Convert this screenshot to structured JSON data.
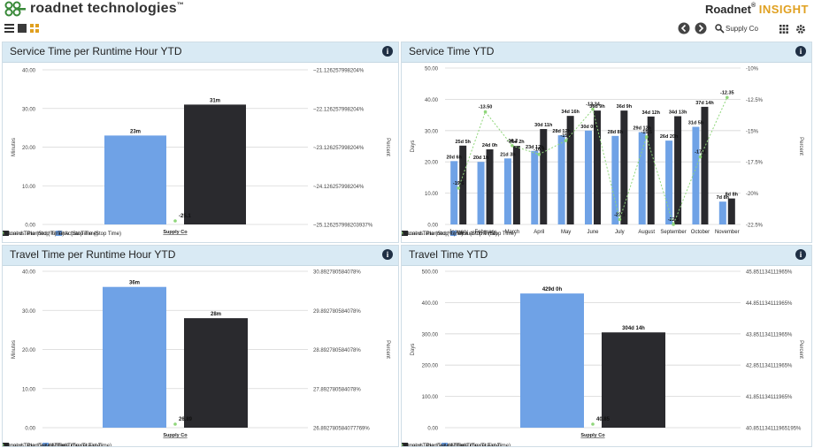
{
  "header": {
    "logo_text": "roadnet technologies",
    "logo_trademark": "™",
    "brand_main": "Roadnet",
    "brand_reg": "®",
    "brand_accent": "INSIGHT",
    "customer_label": "Supply Co"
  },
  "icons": {
    "menu": "menu-icon",
    "list_view": "list-view-icon",
    "grid_view": "grid-view-icon",
    "back": "back-icon",
    "forward": "forward-icon",
    "search": "search-icon",
    "apps": "apps-icon",
    "settings": "gear-icon"
  },
  "colors": {
    "actual": "#6fa2e6",
    "planned": "#2a2a2e",
    "variance": "#8fd67a",
    "panel_header": "#d9eaf4"
  },
  "panels": [
    {
      "title": "Service Time per Runtime Hour YTD",
      "y_left_label": "Minutes",
      "y_right_label": "Percent",
      "legend": [
        "Actual Time (Stop Time)",
        "Planned Time (Stop Time)",
        "Actual vs. Planned (%) Time (Stop Time)"
      ]
    },
    {
      "title": "Service Time YTD",
      "y_left_label": "Days",
      "y_right_label": "Percent",
      "legend": [
        "Actual Time (Stop Time)",
        "Planned Time (Stop Time)",
        "Actual vs. Planned (%) Time (Stop Time)"
      ]
    },
    {
      "title": "Travel Time per Runtime Hour YTD",
      "y_left_label": "Minutes",
      "y_right_label": "Percent",
      "legend": [
        "Actual Time (Travel Time)",
        "Planned Time (Travel Time)",
        "Actual vs. Planned (%) Time (Travel Time)"
      ]
    },
    {
      "title": "Travel Time YTD",
      "y_left_label": "Days",
      "y_right_label": "Percent",
      "legend": [
        "Actual Time (Travel Time)",
        "Planned Time (Travel Time)",
        "Actual vs. Planned (%) Time (Travel Time)"
      ]
    }
  ],
  "chart_data": [
    {
      "type": "bar",
      "title": "Service Time per Runtime Hour YTD",
      "ylabel": "Minutes",
      "y2label": "Percent",
      "ylim": [
        0,
        40
      ],
      "y_ticks": [
        "0.00",
        "10.00",
        "20.00",
        "30.00",
        "40.00"
      ],
      "y2_ticks": [
        "~25.12625799820393​7%",
        "~24.126257998204%",
        "~23.126257998204%",
        "~22.126257998204%",
        "~21.126257998204%"
      ],
      "categories": [
        "Supply Co"
      ],
      "series": [
        {
          "name": "Actual Time (Stop Time)",
          "values": [
            23
          ],
          "labels": [
            "23m"
          ]
        },
        {
          "name": "Planned Time (Stop Time)",
          "values": [
            31
          ],
          "labels": [
            "31m"
          ]
        },
        {
          "name": "Actual vs. Planned (%) Time (Stop Time)",
          "values": [
            -25.13
          ],
          "labels": [
            "-25.1"
          ]
        }
      ]
    },
    {
      "type": "bar",
      "title": "Service Time YTD",
      "ylabel": "Days",
      "y2label": "Percent",
      "ylim": [
        0,
        50
      ],
      "y2lim": [
        -22.5,
        -10
      ],
      "y_ticks": [
        "0.00",
        "10.00",
        "20.00",
        "30.00",
        "40.00",
        "50.00"
      ],
      "y2_ticks": [
        "-22.5%",
        "-20%",
        "-17.5%",
        "-15%",
        "-12.5%",
        "-10%"
      ],
      "categories": [
        "January",
        "February",
        "March",
        "April",
        "May",
        "June",
        "July",
        "August",
        "September",
        "October",
        "November"
      ],
      "series": [
        {
          "name": "Actual Time (Stop Time)",
          "values": [
            20.25,
            20.0,
            21.1,
            23.5,
            28.5,
            30.0,
            28.3,
            29.5,
            26.8,
            31.2,
            7.3
          ],
          "labels": [
            "20d 6h",
            "20d 1h",
            "21d 3h",
            "23d 12h",
            "28d 12h",
            "30d 0h",
            "28d 8h",
            "29d 12h",
            "26d 20h",
            "31d 5h",
            "7d 8h"
          ]
        },
        {
          "name": "Planned Time (Stop Time)",
          "values": [
            25.2,
            24.0,
            25.1,
            30.5,
            34.7,
            36.4,
            36.4,
            34.5,
            34.6,
            37.6,
            8.3
          ],
          "labels": [
            "25d 5h",
            "24d 0h",
            "25d 2h",
            "30d 11h",
            "34d 16h",
            "36d 9h",
            "36d 9h",
            "34d 12h",
            "34d 13h",
            "37d 14h",
            "8d 8h"
          ]
        },
        {
          "name": "Actual vs. Planned (%) Time (Stop Time)",
          "values": [
            -19.6,
            -13.5,
            -16.2,
            -16.9,
            -15.8,
            -13.3,
            -22.1,
            -15.5,
            -22.5,
            -17.1,
            -12.35
          ],
          "labels": [
            "-19.6",
            "-13.50",
            "-16.2",
            "-16.9",
            "-15.8",
            "-13.34",
            "-22.1",
            "-15.5",
            "-22.5",
            "-17.1",
            "-12.35"
          ]
        }
      ]
    },
    {
      "type": "bar",
      "title": "Travel Time per Runtime Hour YTD",
      "ylabel": "Minutes",
      "y2label": "Percent",
      "ylim": [
        0,
        40
      ],
      "y_ticks": [
        "0.00",
        "10.00",
        "20.00",
        "30.00",
        "40.00"
      ],
      "y2_ticks": [
        "26.892780584077769%",
        "27.892780584078%",
        "28.892780584078%",
        "29.892780584078%",
        "30.892780584078%"
      ],
      "categories": [
        "Supply Co"
      ],
      "series": [
        {
          "name": "Actual Time (Travel Time)",
          "values": [
            36
          ],
          "labels": [
            "36m"
          ]
        },
        {
          "name": "Planned Time (Travel Time)",
          "values": [
            28
          ],
          "labels": [
            "28m"
          ]
        },
        {
          "name": "Actual vs. Planned (%) Time (Travel Time)",
          "values": [
            26.89
          ],
          "labels": [
            "26.89"
          ]
        }
      ]
    },
    {
      "type": "bar",
      "title": "Travel Time YTD",
      "ylabel": "Days",
      "y2label": "Percent",
      "ylim": [
        0,
        500
      ],
      "y_ticks": [
        "0.00",
        "100.00",
        "200.00",
        "300.00",
        "400.00",
        "500.00"
      ],
      "y2_ticks": [
        "40.851134111965195%",
        "41.851134111965%",
        "42.851134111965%",
        "43.851134111965%",
        "44.851134111965%",
        "45.851134111965%"
      ],
      "categories": [
        "Supply Co"
      ],
      "series": [
        {
          "name": "Actual Time (Travel Time)",
          "values": [
            429
          ],
          "labels": [
            "429d 0h"
          ]
        },
        {
          "name": "Planned Time (Travel Time)",
          "values": [
            304.6
          ],
          "labels": [
            "304d 14h"
          ]
        },
        {
          "name": "Actual vs. Planned (%) Time (Travel Time)",
          "values": [
            40.85
          ],
          "labels": [
            "40.85"
          ]
        }
      ]
    }
  ]
}
